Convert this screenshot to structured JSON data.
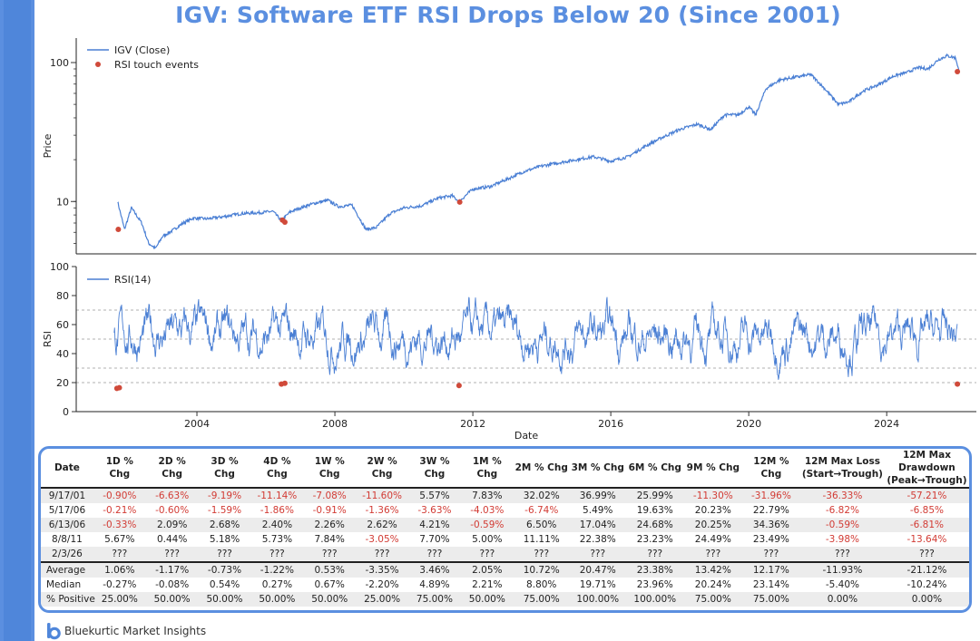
{
  "title": "IGV: Software ETF RSI Drops Below 20 (Since 2001)",
  "colors": {
    "accent": "#5b8fe0",
    "line": "#4a7fd4",
    "marker": "#d04a3a",
    "negative": "#d23b34"
  },
  "chart_data": [
    {
      "type": "line",
      "name": "price-panel",
      "ylabel": "Price",
      "yscale": "log",
      "ylim": [
        4.2,
        150
      ],
      "xlim": [
        2000.5,
        2026.6
      ],
      "yticks": [
        10,
        100
      ],
      "ytick_labels": [
        "10",
        "100"
      ],
      "legend": [
        "IGV (Close)",
        "RSI touch events"
      ],
      "legend_position": "top-left",
      "series": [
        {
          "name": "IGV (Close)",
          "x": [
            2001.7,
            2001.9,
            2002.1,
            2002.4,
            2002.6,
            2002.8,
            2003.0,
            2003.3,
            2003.6,
            2003.9,
            2004.3,
            2004.8,
            2005.3,
            2005.8,
            2006.2,
            2006.45,
            2006.7,
            2007.0,
            2007.4,
            2007.8,
            2008.1,
            2008.5,
            2008.9,
            2009.2,
            2009.6,
            2010.0,
            2010.5,
            2011.0,
            2011.4,
            2011.6,
            2012.0,
            2012.5,
            2013.0,
            2013.5,
            2014.0,
            2014.5,
            2015.0,
            2015.5,
            2016.0,
            2016.5,
            2017.0,
            2017.5,
            2018.0,
            2018.5,
            2018.9,
            2019.3,
            2019.7,
            2020.0,
            2020.2,
            2020.5,
            2020.9,
            2021.3,
            2021.8,
            2022.2,
            2022.6,
            2022.9,
            2023.3,
            2023.8,
            2024.2,
            2024.6,
            2024.9,
            2025.2,
            2025.5,
            2025.75,
            2026.0,
            2026.1
          ],
          "y": [
            10.0,
            6.3,
            9.0,
            7.0,
            5.0,
            4.6,
            5.6,
            6.2,
            7.0,
            7.6,
            7.5,
            7.8,
            8.2,
            8.3,
            8.5,
            7.3,
            8.4,
            9.0,
            9.7,
            10.2,
            9.2,
            9.4,
            6.3,
            6.5,
            8.2,
            9.0,
            9.3,
            10.6,
            11.0,
            10.0,
            12.3,
            12.8,
            14.5,
            16.5,
            18.0,
            19.0,
            20.0,
            21.0,
            19.5,
            21.0,
            25.0,
            29.0,
            33.0,
            36.0,
            33.0,
            42.0,
            42.0,
            48.0,
            42.0,
            65.0,
            75.0,
            78.0,
            82.0,
            65.0,
            50.0,
            52.0,
            62.0,
            70.0,
            80.0,
            85.0,
            92.0,
            90.0,
            105.0,
            112.0,
            108.0,
            86.0
          ]
        },
        {
          "name": "RSI touch events",
          "x": [
            2001.72,
            2006.48,
            2006.55,
            2011.62,
            2026.05
          ],
          "y": [
            6.3,
            7.35,
            7.1,
            9.9,
            86.0
          ]
        }
      ]
    },
    {
      "type": "line",
      "name": "rsi-panel",
      "ylabel": "RSI",
      "xlabel": "Date",
      "ylim": [
        0,
        100
      ],
      "xlim": [
        2000.5,
        2026.6
      ],
      "yticks": [
        0,
        20,
        40,
        60,
        80,
        100
      ],
      "xticks": [
        2004,
        2008,
        2012,
        2016,
        2020,
        2024
      ],
      "xtick_labels": [
        "2004",
        "2008",
        "2012",
        "2016",
        "2020",
        "2024"
      ],
      "reference_lines": [
        20,
        30,
        50,
        70
      ],
      "legend": [
        "RSI(14)"
      ],
      "legend_position": "top-left",
      "rsi_start_year": 2001.6,
      "rsi_end_year": 2026.05,
      "series": [
        {
          "name": "RSI touch events",
          "x": [
            2001.68,
            2001.75,
            2006.45,
            2006.55,
            2011.6,
            2026.05
          ],
          "y": [
            16,
            16.5,
            19,
            19.5,
            18,
            19
          ]
        }
      ]
    }
  ],
  "table": {
    "headers": [
      "Date",
      "1D % Chg",
      "2D % Chg",
      "3D % Chg",
      "4D % Chg",
      "1W % Chg",
      "2W % Chg",
      "3W % Chg",
      "1M % Chg",
      "2M % Chg",
      "3M % Chg",
      "6M % Chg",
      "9M % Chg",
      "12M % Chg",
      "12M Max Loss\n(Start→Trough)",
      "12M Max Drawdown\n(Peak→Trough)"
    ],
    "rows": [
      [
        "9/17/01",
        "-0.90%",
        "-6.63%",
        "-9.19%",
        "-11.14%",
        "-7.08%",
        "-11.60%",
        "5.57%",
        "7.83%",
        "32.02%",
        "36.99%",
        "25.99%",
        "-11.30%",
        "-31.96%",
        "-36.33%",
        "-57.21%"
      ],
      [
        "5/17/06",
        "-0.21%",
        "-0.60%",
        "-1.59%",
        "-1.86%",
        "-0.91%",
        "-1.36%",
        "-3.63%",
        "-4.03%",
        "-6.74%",
        "5.49%",
        "19.63%",
        "20.23%",
        "22.79%",
        "-6.82%",
        "-6.85%"
      ],
      [
        "6/13/06",
        "-0.33%",
        "2.09%",
        "2.68%",
        "2.40%",
        "2.26%",
        "2.62%",
        "4.21%",
        "-0.59%",
        "6.50%",
        "17.04%",
        "24.68%",
        "20.25%",
        "34.36%",
        "-0.59%",
        "-6.81%"
      ],
      [
        "8/8/11",
        "5.67%",
        "0.44%",
        "5.18%",
        "5.73%",
        "7.84%",
        "-3.05%",
        "7.70%",
        "5.00%",
        "11.11%",
        "22.38%",
        "23.23%",
        "24.49%",
        "23.49%",
        "-3.98%",
        "-13.64%"
      ],
      [
        "2/3/26",
        "???",
        "???",
        "???",
        "???",
        "???",
        "???",
        "???",
        "???",
        "???",
        "???",
        "???",
        "???",
        "???",
        "???",
        "???"
      ]
    ],
    "summary": [
      [
        "Average",
        "1.06%",
        "-1.17%",
        "-0.73%",
        "-1.22%",
        "0.53%",
        "-3.35%",
        "3.46%",
        "2.05%",
        "10.72%",
        "20.47%",
        "23.38%",
        "13.42%",
        "12.17%",
        "-11.93%",
        "-21.12%"
      ],
      [
        "Median",
        "-0.27%",
        "-0.08%",
        "0.54%",
        "0.27%",
        "0.67%",
        "-2.20%",
        "4.89%",
        "2.21%",
        "8.80%",
        "19.71%",
        "23.96%",
        "20.24%",
        "23.14%",
        "-5.40%",
        "-10.24%"
      ],
      [
        "% Positive",
        "25.00%",
        "50.00%",
        "50.00%",
        "50.00%",
        "50.00%",
        "25.00%",
        "75.00%",
        "50.00%",
        "75.00%",
        "100.00%",
        "100.00%",
        "75.00%",
        "75.00%",
        "0.00%",
        "0.00%"
      ]
    ]
  },
  "brand": {
    "name": "Bluekurtic Market Insights",
    "logo_letter": "b"
  }
}
